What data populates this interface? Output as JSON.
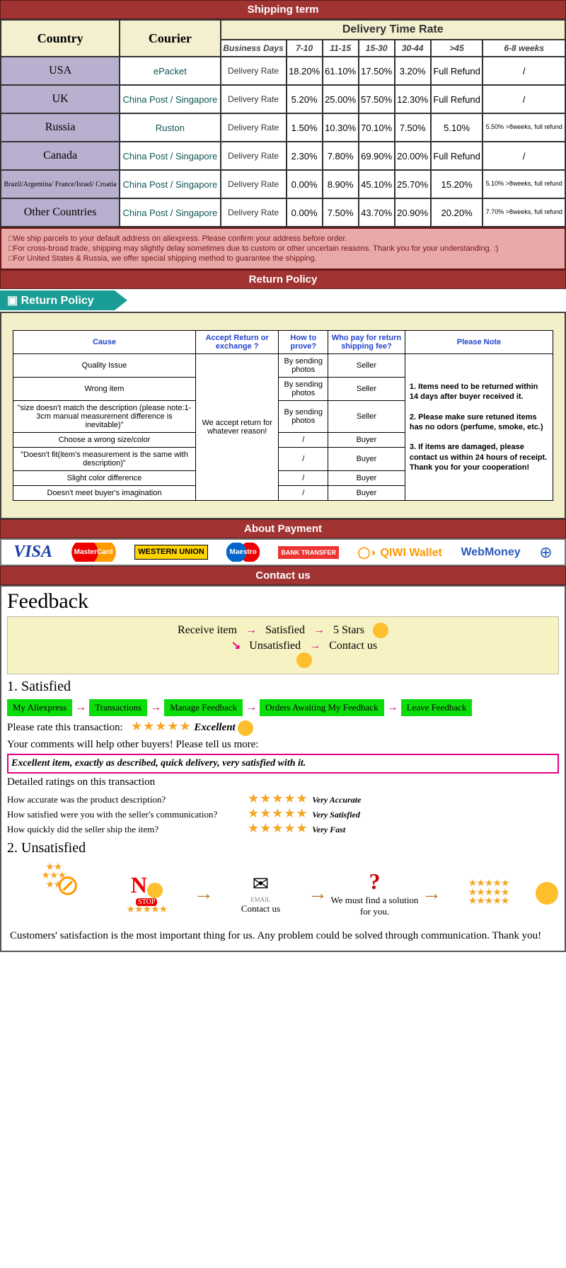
{
  "sections": {
    "shipping_header": "Shipping term",
    "return_header": "Return Policy",
    "payment_header": "About Payment",
    "contact_header": "Contact us"
  },
  "shipping": {
    "col_country": "Country",
    "col_courier": "Courier",
    "col_delivery_span": "Delivery Time Rate",
    "subcols": [
      "Business Days",
      "7-10",
      "11-15",
      "15-30",
      "30-44",
      ">45",
      "6-8 weeks"
    ],
    "rows": [
      {
        "country": "USA",
        "courier": "ePacket",
        "cells": [
          "Delivery Rate",
          "18.20%",
          "61.10%",
          "17.50%",
          "3.20%",
          "Full Refund",
          "/"
        ]
      },
      {
        "country": "UK",
        "courier": "China Post / Singapore",
        "cells": [
          "Delivery Rate",
          "5.20%",
          "25.00%",
          "57.50%",
          "12.30%",
          "Full Refund",
          "/"
        ]
      },
      {
        "country": "Russia",
        "courier": "Ruston",
        "cells": [
          "Delivery Rate",
          "1.50%",
          "10.30%",
          "70.10%",
          "7.50%",
          "5.10%",
          "5.50% >8weeks, full refund"
        ]
      },
      {
        "country": "Canada",
        "courier": "China Post / Singapore",
        "cells": [
          "Delivery Rate",
          "2.30%",
          "7.80%",
          "69.90%",
          "20.00%",
          "Full Refund",
          "/"
        ]
      },
      {
        "country": "Brazil/Argentina/ France/Israel/ Croatia",
        "courier": "China Post / Singapore",
        "small": true,
        "cells": [
          "Delivery Rate",
          "0.00%",
          "8.90%",
          "45.10%",
          "25.70%",
          "15.20%",
          "5.10% >8weeks, full refund"
        ]
      },
      {
        "country": "Other Countries",
        "courier": "China Post / Singapore",
        "cells": [
          "Delivery Rate",
          "0.00%",
          "7.50%",
          "43.70%",
          "20.90%",
          "20.20%",
          "7.70% >8weeks, full refund"
        ]
      }
    ],
    "notes": [
      "□We ship parcels to your default address on aliexpress. Please confirm your address before order.",
      "□For cross-broad trade, shipping may slightly delay sometimes due to custom or other uncertain reasons. Thank you for your understanding. :)",
      "□For United States & Russia, we offer special shipping method to guarantee the shipping."
    ]
  },
  "return": {
    "banner": "Return Policy",
    "cols": [
      "Cause",
      "Accept Return or exchange ?",
      "How to prove?",
      "Who pay for return shipping fee?",
      "Please Note"
    ],
    "accept_text": "We accept return for whatever reason!",
    "note_text": "1. Items need to be returned within 14 days after buyer received it.\n\n2. Please make sure retuned items has no odors (perfume, smoke, etc.)\n\n3. If items are damaged, please contact us within 24 hours of receipt.\nThank you for your cooperation!",
    "rows": [
      {
        "cause": "Quality Issue",
        "prove": "By sending photos",
        "payer": "Seller"
      },
      {
        "cause": "Wrong item",
        "prove": "By sending photos",
        "payer": "Seller"
      },
      {
        "cause": "\"size doesn't match the description (please note:1-3cm manual measurement difference is inevitable)\"",
        "prove": "By sending photos",
        "payer": "Seller"
      },
      {
        "cause": "Choose a wrong size/color",
        "prove": "/",
        "payer": "Buyer"
      },
      {
        "cause": "\"Doesn't fit(item's measurement is the same with description)\"",
        "prove": "/",
        "payer": "Buyer"
      },
      {
        "cause": "Slight color difference",
        "prove": "/",
        "payer": "Buyer"
      },
      {
        "cause": "Doesn't meet buyer's imagination",
        "prove": "/",
        "payer": "Buyer"
      }
    ]
  },
  "payment": {
    "logos": [
      "VISA",
      "MasterCard",
      "WESTERN UNION",
      "Maestro",
      "BANK TRANSFER",
      "QIWI Wallet",
      "WebMoney",
      "⊕"
    ]
  },
  "feedback": {
    "title": "Feedback",
    "flow_top": {
      "receive": "Receive item",
      "satisfied": "Satisfied",
      "stars": "5 Stars"
    },
    "flow_bottom": {
      "unsatisfied": "Unsatisfied",
      "contact": "Contact us"
    },
    "sat_heading": "1. Satisfied",
    "sat_steps": [
      "My Aliexpress",
      "Transactions",
      "Manage Feedback",
      "Orders Awaiting My Feedback",
      "Leave Feedback"
    ],
    "rate_label": "Please rate this transaction:",
    "rate_stars": "★★★★★",
    "rate_word": "Excellent",
    "comments_help": "Your comments will help other buyers! Please tell us more:",
    "comment_text": "Excellent item, exactly as described, quick delivery, very satisfied with it.",
    "details_heading": "Detailed ratings on this transaction",
    "details": [
      {
        "q": "How accurate was the product description?",
        "r": "Very Accurate"
      },
      {
        "q": "How satisfied were you with the seller's communication?",
        "r": "Very Satisfied"
      },
      {
        "q": "How quickly did the seller ship the item?",
        "r": "Very Fast"
      }
    ],
    "unsat_heading": "2. Unsatisfied",
    "unsat_no": "N",
    "unsat_steps": {
      "contact": "Contact us",
      "solution": "We must find a solution for you."
    },
    "closing": "Customers' satisfaction is the most important thing for us. Any problem could be solved through communication. Thank you!"
  },
  "colors": {
    "header_bg": "#a13333",
    "note_bg": "#e9a9a9",
    "return_bg": "#f3efcb",
    "teal": "#1a9d96",
    "green_step": "#0bdd0b",
    "magenta": "#e4007f",
    "star": "#f5a623",
    "flow_bg": "#f6f2c3"
  }
}
